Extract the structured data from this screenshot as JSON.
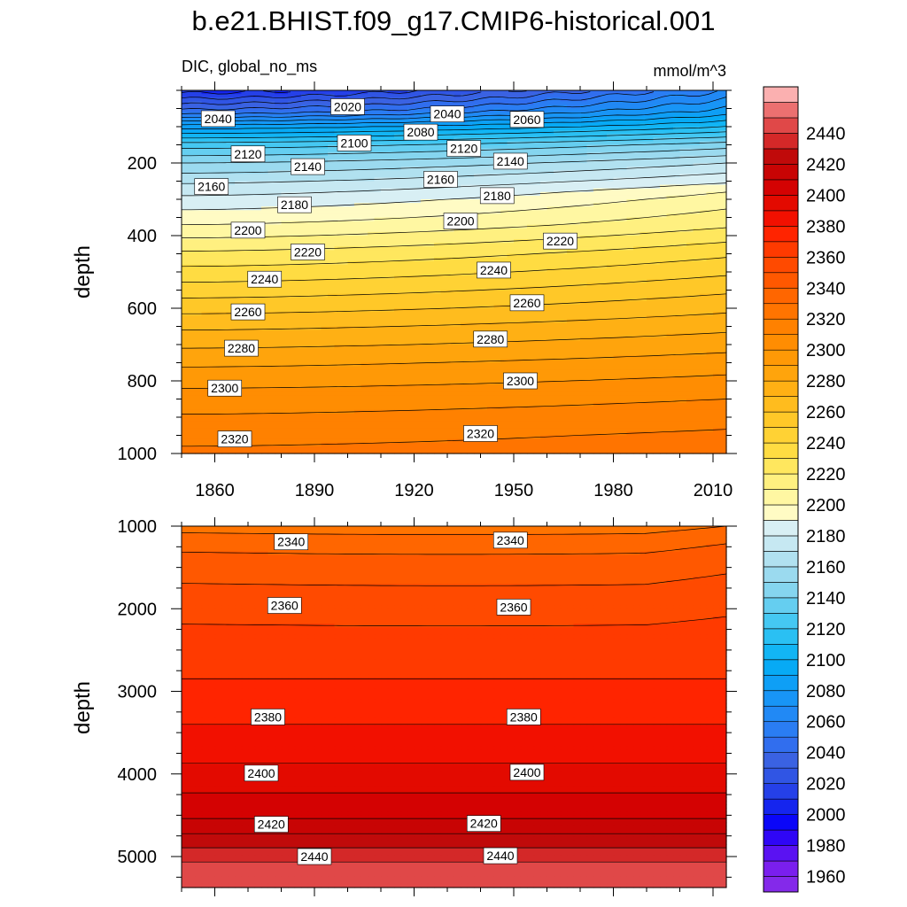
{
  "title": "b.e21.BHIST.f09_g17.CMIP6-historical.001",
  "chart_data": [
    {
      "type": "contour",
      "panel": "upper",
      "left_string": "DIC, global_no_ms",
      "right_string": "mmol/m^3",
      "ylabel": "depth",
      "xlabel": "",
      "x_range": [
        1850,
        2014
      ],
      "ylim": [
        0,
        1000
      ],
      "y_reversed": true,
      "x_ticks": [
        1860,
        1890,
        1920,
        1950,
        1980,
        2010
      ],
      "x_tick_labels": [
        "1860",
        "1890",
        "1920",
        "1950",
        "1980",
        "2010"
      ],
      "y_ticks": [
        200,
        400,
        600,
        800,
        1000
      ],
      "y_tick_labels": [
        "200",
        "400",
        "600",
        "800",
        "1000"
      ],
      "contour_interval": 10,
      "depth_profile_start": [
        [
          0,
          2005
        ],
        [
          60,
          2045
        ],
        [
          100,
          2085
        ],
        [
          150,
          2125
        ],
        [
          200,
          2150
        ],
        [
          250,
          2168
        ],
        [
          300,
          2183
        ],
        [
          370,
          2200
        ],
        [
          450,
          2222
        ],
        [
          550,
          2245
        ],
        [
          650,
          2268
        ],
        [
          750,
          2288
        ],
        [
          850,
          2305
        ],
        [
          950,
          2317
        ],
        [
          1000,
          2322
        ]
      ],
      "depth_profile_end": [
        [
          0,
          2060
        ],
        [
          60,
          2085
        ],
        [
          100,
          2110
        ],
        [
          150,
          2145
        ],
        [
          200,
          2170
        ],
        [
          250,
          2188
        ],
        [
          280,
          2200
        ],
        [
          300,
          2205
        ],
        [
          370,
          2218
        ],
        [
          450,
          2238
        ],
        [
          550,
          2258
        ],
        [
          650,
          2277
        ],
        [
          750,
          2295
        ],
        [
          850,
          2310
        ],
        [
          950,
          2322
        ],
        [
          1000,
          2326
        ]
      ],
      "contour_labels": [
        {
          "text": "2020",
          "x": 1900,
          "y": 45
        },
        {
          "text": "2040",
          "x": 1861,
          "y": 78
        },
        {
          "text": "2040",
          "x": 1930,
          "y": 65
        },
        {
          "text": "2060",
          "x": 1954,
          "y": 80
        },
        {
          "text": "2080",
          "x": 1922,
          "y": 115
        },
        {
          "text": "2100",
          "x": 1902,
          "y": 145
        },
        {
          "text": "2120",
          "x": 1870,
          "y": 175
        },
        {
          "text": "2120",
          "x": 1935,
          "y": 160
        },
        {
          "text": "2140",
          "x": 1888,
          "y": 210
        },
        {
          "text": "2140",
          "x": 1949,
          "y": 195
        },
        {
          "text": "2160",
          "x": 1859,
          "y": 265
        },
        {
          "text": "2160",
          "x": 1928,
          "y": 245
        },
        {
          "text": "2180",
          "x": 1884,
          "y": 315
        },
        {
          "text": "2180",
          "x": 1945,
          "y": 290
        },
        {
          "text": "2200",
          "x": 1870,
          "y": 385
        },
        {
          "text": "2200",
          "x": 1934,
          "y": 360
        },
        {
          "text": "2220",
          "x": 1888,
          "y": 445
        },
        {
          "text": "2220",
          "x": 1964,
          "y": 415
        },
        {
          "text": "2240",
          "x": 1875,
          "y": 520
        },
        {
          "text": "2240",
          "x": 1944,
          "y": 495
        },
        {
          "text": "2260",
          "x": 1870,
          "y": 610
        },
        {
          "text": "2260",
          "x": 1954,
          "y": 585
        },
        {
          "text": "2280",
          "x": 1868,
          "y": 710
        },
        {
          "text": "2280",
          "x": 1943,
          "y": 685
        },
        {
          "text": "2300",
          "x": 1863,
          "y": 820
        },
        {
          "text": "2300",
          "x": 1952,
          "y": 800
        },
        {
          "text": "2320",
          "x": 1866,
          "y": 960
        },
        {
          "text": "2320",
          "x": 1940,
          "y": 945
        }
      ]
    },
    {
      "type": "contour",
      "panel": "lower",
      "ylabel": "depth",
      "xlabel": "",
      "x_range": [
        1850,
        2014
      ],
      "ylim": [
        1000,
        5375
      ],
      "y_reversed": true,
      "x_ticks": [
        1860,
        1890,
        1920,
        1950,
        1980,
        2010
      ],
      "y_ticks": [
        1000,
        2000,
        3000,
        4000,
        5000
      ],
      "y_tick_labels": [
        "1000",
        "2000",
        "3000",
        "4000",
        "5000"
      ],
      "contour_interval": 10,
      "depth_profile": [
        [
          1000,
          2326
        ],
        [
          1200,
          2336
        ],
        [
          1400,
          2343
        ],
        [
          1900,
          2355
        ],
        [
          2300,
          2362
        ],
        [
          2850,
          2370
        ],
        [
          3300,
          2378
        ],
        [
          3800,
          2388
        ],
        [
          4300,
          2402
        ],
        [
          4600,
          2412
        ],
        [
          4800,
          2425
        ],
        [
          4950,
          2433
        ],
        [
          5100,
          2442
        ],
        [
          5200,
          2448
        ],
        [
          5375,
          2452
        ]
      ],
      "contour_labels": [
        {
          "text": "2340",
          "x": 1883,
          "y": 1190
        },
        {
          "text": "2340",
          "x": 1949,
          "y": 1170
        },
        {
          "text": "2360",
          "x": 1881,
          "y": 1960
        },
        {
          "text": "2360",
          "x": 1950,
          "y": 1980
        },
        {
          "text": "2380",
          "x": 1876,
          "y": 3310
        },
        {
          "text": "2380",
          "x": 1953,
          "y": 3310
        },
        {
          "text": "2400",
          "x": 1874,
          "y": 3990
        },
        {
          "text": "2400",
          "x": 1954,
          "y": 3980
        },
        {
          "text": "2420",
          "x": 1877,
          "y": 4610
        },
        {
          "text": "2420",
          "x": 1941,
          "y": 4600
        },
        {
          "text": "2440",
          "x": 1890,
          "y": 5000
        },
        {
          "text": "2440",
          "x": 1946,
          "y": 4990
        }
      ]
    }
  ],
  "colorbar": {
    "levels": [
      1960,
      1970,
      1980,
      1990,
      2000,
      2010,
      2020,
      2030,
      2040,
      2050,
      2060,
      2070,
      2080,
      2090,
      2100,
      2110,
      2120,
      2130,
      2140,
      2150,
      2160,
      2170,
      2180,
      2190,
      2200,
      2210,
      2220,
      2230,
      2240,
      2250,
      2260,
      2270,
      2280,
      2290,
      2300,
      2310,
      2320,
      2330,
      2340,
      2350,
      2360,
      2370,
      2380,
      2390,
      2400,
      2410,
      2420,
      2430,
      2440
    ],
    "labels": [
      "1960",
      "1980",
      "2000",
      "2020",
      "2040",
      "2060",
      "2080",
      "2100",
      "2120",
      "2140",
      "2160",
      "2180",
      "2200",
      "2220",
      "2240",
      "2260",
      "2280",
      "2300",
      "2320",
      "2340",
      "2360",
      "2380",
      "2400",
      "2420",
      "2440"
    ],
    "colors": [
      "#8429ea",
      "#7a1fee",
      "#5a12f2",
      "#2f06f6",
      "#0a06f8",
      "#1525ee",
      "#2540e8",
      "#3055e4",
      "#3a62e2",
      "#316eee",
      "#2a7df3",
      "#2189f5",
      "#1895f6",
      "#0e9ff6",
      "#07aaf5",
      "#12b5f4",
      "#2ac0f3",
      "#45c8f2",
      "#65cef0",
      "#85d5ef",
      "#9bdaef",
      "#b1e1f0",
      "#c6e8f2",
      "#d8eff4",
      "#fffbc4",
      "#fff7a2",
      "#fff080",
      "#ffe75e",
      "#ffdc42",
      "#ffd234",
      "#ffc828",
      "#ffbc1e",
      "#ffb014",
      "#ffa40c",
      "#ff9906",
      "#ff8d02",
      "#ff8100",
      "#ff7400",
      "#ff6600",
      "#ff5800",
      "#ff4a00",
      "#ff3a00",
      "#ff2400",
      "#f21000",
      "#e30a00",
      "#d40202",
      "#c80404",
      "#c00a0a",
      "#d42828",
      "#e04848",
      "#ec7070",
      "#fbb0b0"
    ]
  }
}
